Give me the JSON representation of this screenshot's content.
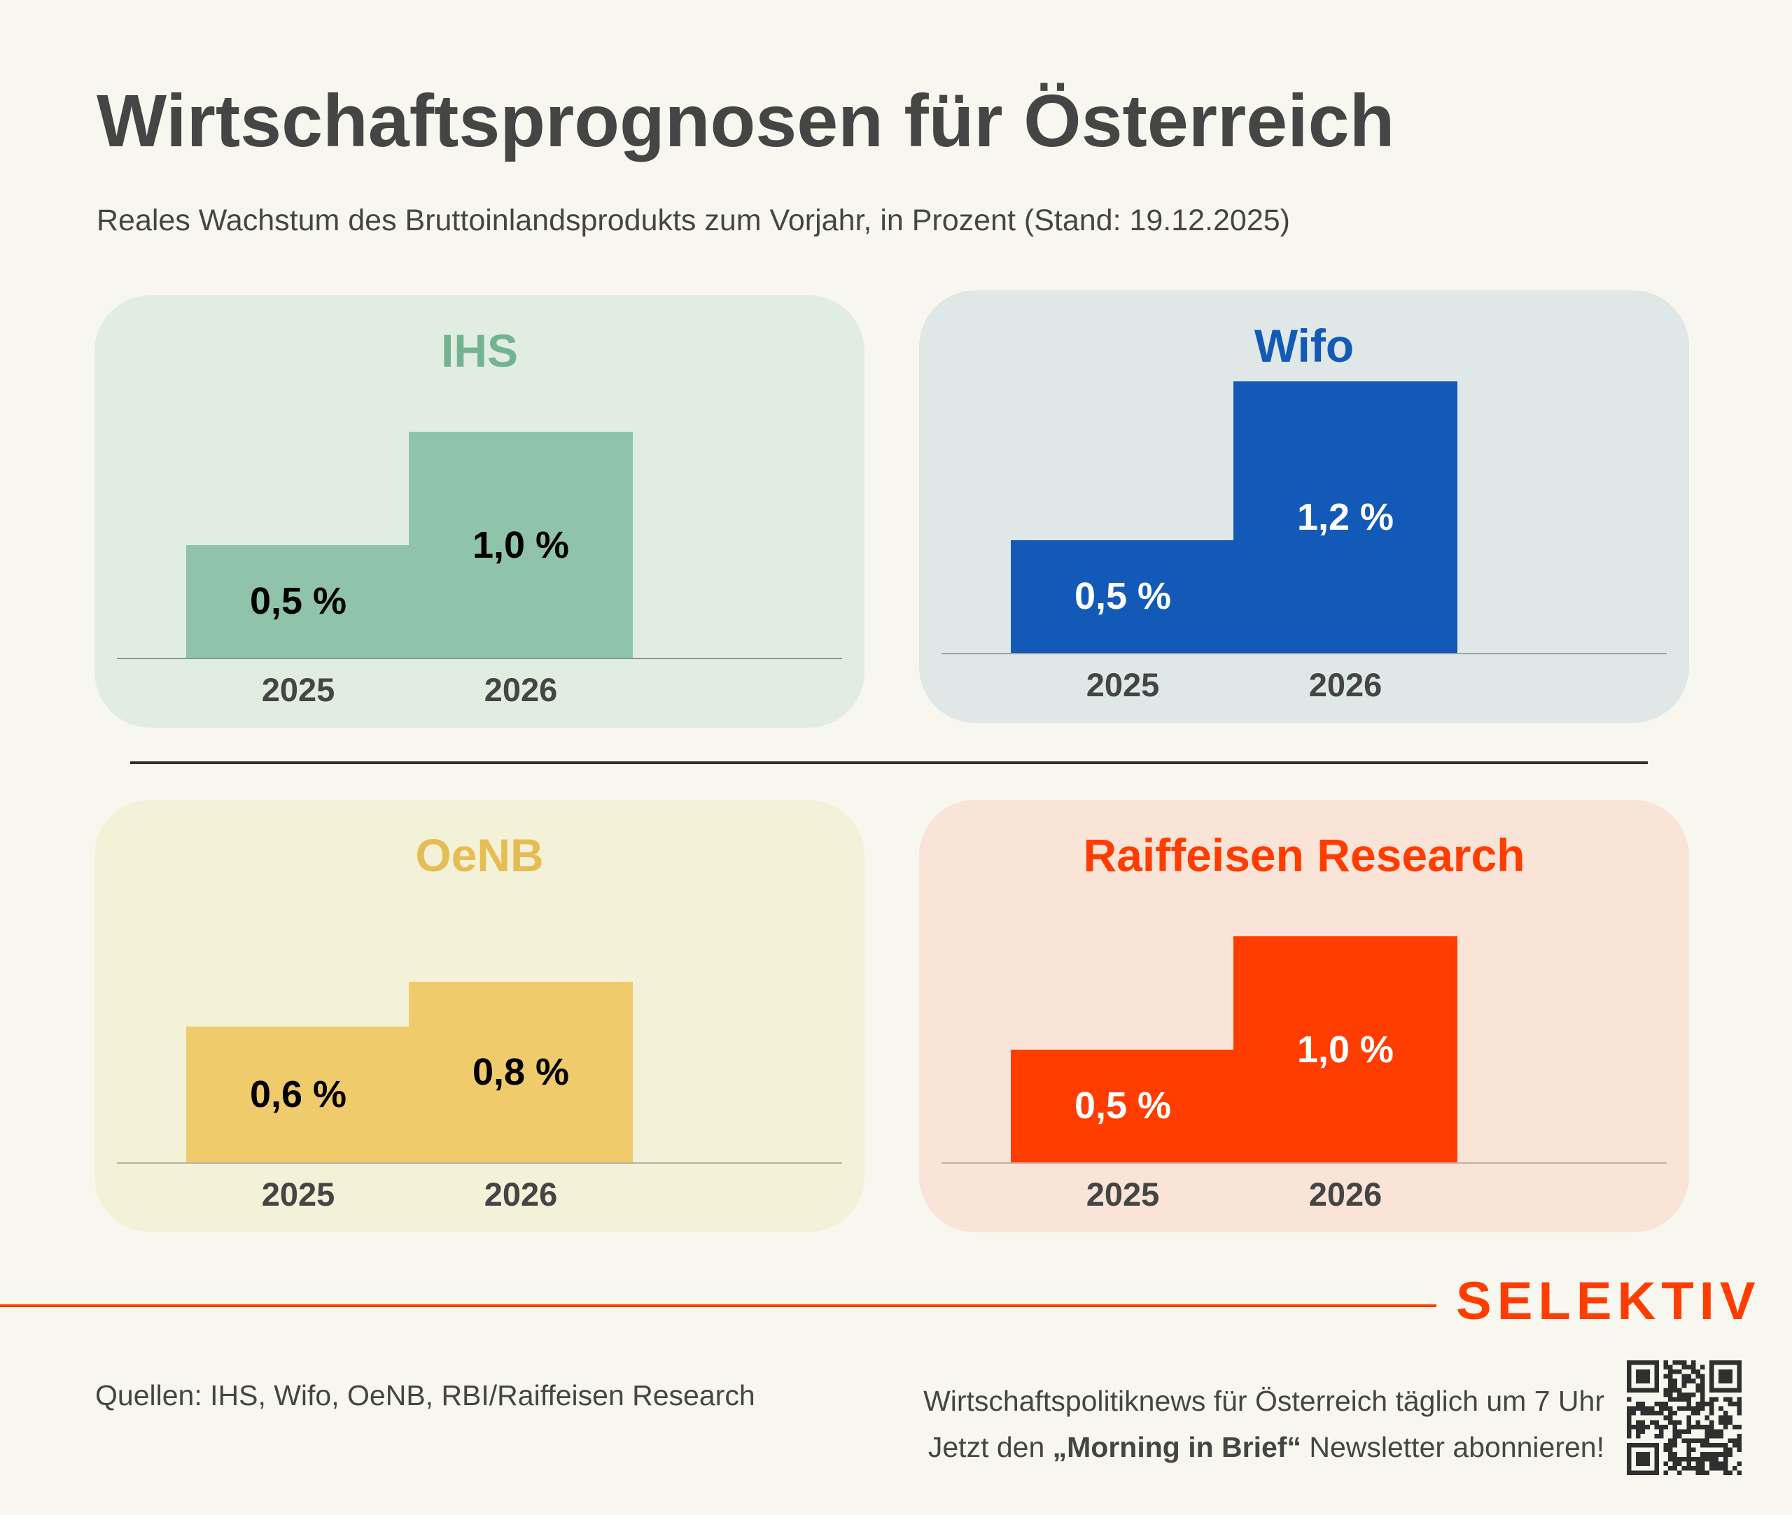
{
  "header": {
    "title": "Wirtschaftsprognosen für Österreich",
    "subtitle": "Reales Wachstum des Bruttoinlandsprodukts zum Vorjahr, in Prozent (Stand: 19.12.2025)"
  },
  "colors": {
    "background": "#f8f7ef",
    "text": "#454545",
    "divider": "#2f2f2f",
    "brand": "#ff3d00"
  },
  "chart_data": [
    {
      "type": "bar",
      "title": "IHS",
      "categories": [
        "2025",
        "2026"
      ],
      "values": [
        0.5,
        1.0
      ],
      "labels": [
        "0,5 %",
        "1,0 %"
      ],
      "xlabel": "",
      "ylabel": "",
      "ylim": [
        0,
        1.2
      ],
      "grid": false,
      "colors": {
        "title": "#72b48f",
        "bar": "#8fc4aa",
        "panel": "#e2ede2",
        "label": "#000000",
        "baseline": "#8a9a8d"
      }
    },
    {
      "type": "bar",
      "title": "Wifo",
      "categories": [
        "2025",
        "2026"
      ],
      "values": [
        0.5,
        1.2
      ],
      "labels": [
        "0,5 %",
        "1,2 %"
      ],
      "xlabel": "",
      "ylabel": "",
      "ylim": [
        0,
        1.2
      ],
      "grid": false,
      "colors": {
        "title": "#135ab8",
        "bar": "#135ab8",
        "panel": "#e0e7e7",
        "label": "#ffffff",
        "baseline": "#9aa3a5"
      }
    },
    {
      "type": "bar",
      "title": "OeNB",
      "categories": [
        "2025",
        "2026"
      ],
      "values": [
        0.6,
        0.8
      ],
      "labels": [
        "0,6 %",
        "0,8 %"
      ],
      "xlabel": "",
      "ylabel": "",
      "ylim": [
        0,
        1.2
      ],
      "grid": false,
      "colors": {
        "title": "#e6bd55",
        "bar": "#efcb6b",
        "panel": "#f4f1d9",
        "label": "#000000",
        "baseline": "#b7b29f"
      }
    },
    {
      "type": "bar",
      "title": "Raiffeisen Research",
      "categories": [
        "2025",
        "2026"
      ],
      "values": [
        0.5,
        1.0
      ],
      "labels": [
        "0,5 %",
        "1,0 %"
      ],
      "xlabel": "",
      "ylabel": "",
      "ylim": [
        0,
        1.2
      ],
      "grid": false,
      "colors": {
        "title": "#ff3d00",
        "bar": "#ff3d00",
        "panel": "#fae4d8",
        "label": "#ffffff",
        "baseline": "#c2aea3"
      }
    }
  ],
  "footer": {
    "brand": "SELEKTIV",
    "sources": "Quellen: IHS, Wifo, OeNB, RBI/Raiffeisen Research",
    "promo_line1": "Wirtschaftspolitiknews für Österreich täglich um 7 Uhr",
    "promo_line2_prefix": "Jetzt den ",
    "promo_line2_bold": "„Morning in Brief“",
    "promo_line2_suffix": " Newsletter abonnieren!",
    "qr_icon": "qr-code-icon"
  }
}
